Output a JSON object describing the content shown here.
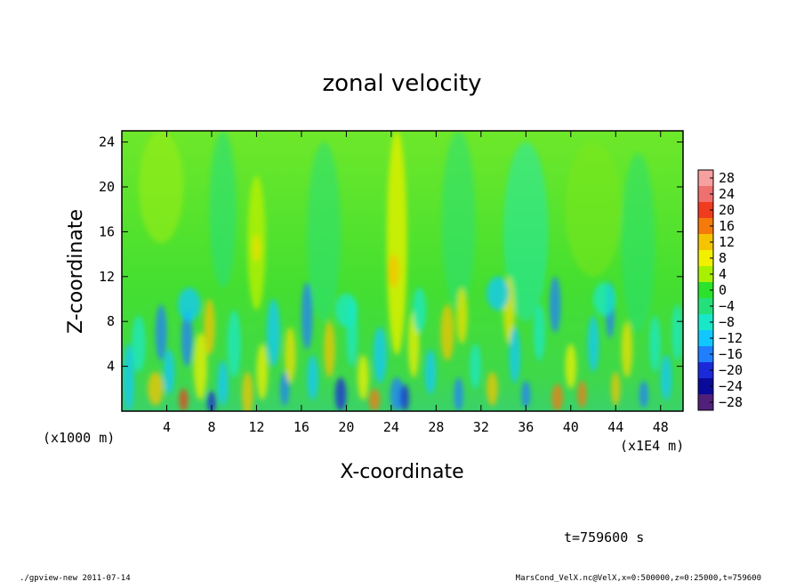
{
  "chart_data": {
    "type": "heatmap",
    "title": "zonal velocity",
    "xlabel": "X-coordinate",
    "ylabel": "Z-coordinate",
    "x_unit": "(x1E4 m)",
    "y_unit": "(x1000 m)",
    "x_ticks": [
      "4",
      "8",
      "12",
      "16",
      "20",
      "24",
      "28",
      "32",
      "36",
      "40",
      "44",
      "48"
    ],
    "y_ticks": [
      "4",
      "8",
      "12",
      "16",
      "20",
      "24"
    ],
    "xlim": [
      0,
      50
    ],
    "ylim": [
      0,
      25
    ],
    "colorbar": {
      "levels": [
        "28",
        "24",
        "20",
        "16",
        "12",
        "8",
        "4",
        "0",
        "−4",
        "−8",
        "−12",
        "−16",
        "−20",
        "−24",
        "−28"
      ],
      "colors": [
        "#f6a0a0",
        "#f07070",
        "#f03c1e",
        "#f57a0a",
        "#f5c400",
        "#f0f000",
        "#a8f000",
        "#2ce22c",
        "#24e07a",
        "#18e8c8",
        "#10c8ff",
        "#1f7fff",
        "#1a2ad8",
        "#0a0a9a",
        "#50207a"
      ]
    },
    "time_label": "t=759600 s",
    "footer_left": "./gpview-new   2011-07-14",
    "footer_right": "MarsCond_VelX.nc@VelX,x=0:500000,z=0:25000,t=759600"
  }
}
